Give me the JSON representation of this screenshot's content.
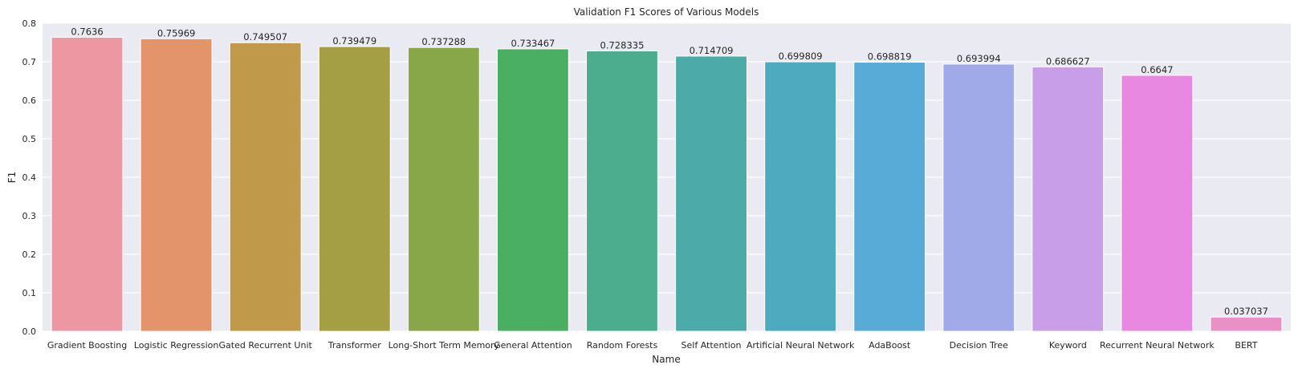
{
  "chart_data": {
    "type": "bar",
    "title": "Validation F1 Scores of Various Models",
    "xlabel": "Name",
    "ylabel": "F1",
    "ylim": [
      0,
      0.8
    ],
    "yticks": [
      "0.0",
      "0.1",
      "0.2",
      "0.3",
      "0.4",
      "0.5",
      "0.6",
      "0.7",
      "0.8"
    ],
    "grid": true,
    "categories": [
      "Gradient Boosting",
      "Logistic Regression",
      "Gated Recurrent Unit",
      "Transformer",
      "Long-Short Term Memory",
      "General Attention",
      "Random Forests",
      "Self Attention",
      "Artificial Neural Network",
      "AdaBoost",
      "Decision Tree",
      "Keyword",
      "Recurrent Neural Network",
      "BERT"
    ],
    "values": [
      0.7636,
      0.75969,
      0.749507,
      0.739479,
      0.737288,
      0.733467,
      0.728335,
      0.714709,
      0.699809,
      0.698819,
      0.693994,
      0.686627,
      0.6647,
      0.037037
    ],
    "value_labels": [
      "0.7636",
      "0.75969",
      "0.749507",
      "0.739479",
      "0.737288",
      "0.733467",
      "0.728335",
      "0.714709",
      "0.699809",
      "0.698819",
      "0.693994",
      "0.686627",
      "0.6647",
      "0.037037"
    ],
    "colors": [
      "#ec97a2",
      "#e4946a",
      "#c09a4a",
      "#a49e45",
      "#88a748",
      "#4aaf62",
      "#4bad8e",
      "#4caba8",
      "#4eaabf",
      "#57abd6",
      "#a0aae8",
      "#c79ee7",
      "#e988e0",
      "#e991c6"
    ],
    "plot_background": "#eaeaf2",
    "grid_color": "#ffffff"
  }
}
